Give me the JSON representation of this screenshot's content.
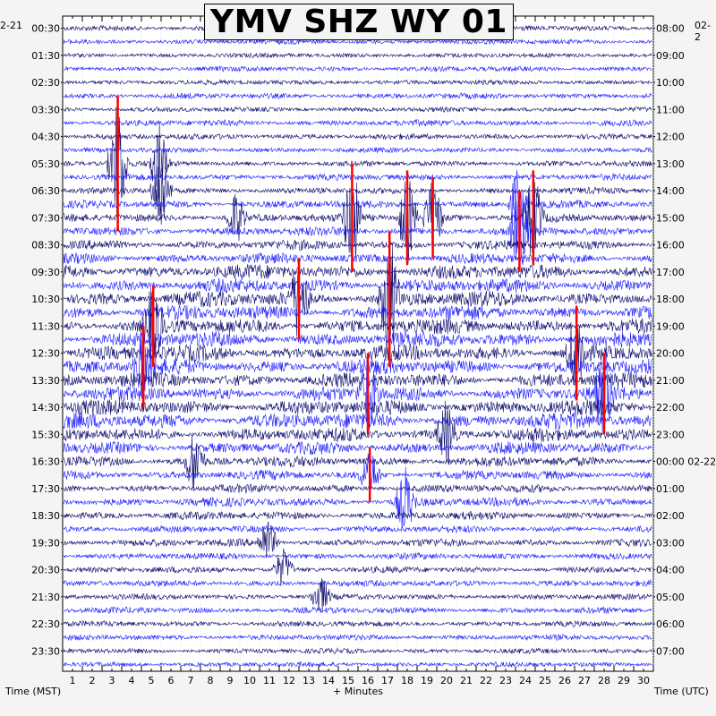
{
  "title": "YMV SHZ WY 01",
  "start_date_left": "2-21",
  "start_date_right": "02-2",
  "left_axis_title": "Time (MST)",
  "right_axis_title": "Time (UTC)",
  "x_axis_title": "+ Minutes",
  "colors": {
    "trace_dark": "#0a0a6e",
    "trace_blue": "#1a1aff",
    "clip": "#ff0000",
    "background": "#ffffff"
  },
  "chart_data": {
    "type": "line",
    "title": "YMV SHZ WY 01",
    "xlabel": "+ Minutes",
    "ylabel_left": "Time (MST)",
    "ylabel_right": "Time (UTC)",
    "xlim": [
      0,
      30
    ],
    "x_ticks": [
      1,
      2,
      3,
      4,
      5,
      6,
      7,
      8,
      9,
      10,
      11,
      12,
      13,
      14,
      15,
      16,
      17,
      18,
      19,
      20,
      21,
      22,
      23,
      24,
      25,
      26,
      27,
      28,
      29,
      30
    ],
    "rows_per_hour": 2,
    "row_count": 48,
    "left_tick_labels": [
      "00:30",
      "01:30",
      "02:30",
      "03:30",
      "04:30",
      "05:30",
      "06:30",
      "07:30",
      "08:30",
      "09:30",
      "10:30",
      "11:30",
      "12:30",
      "13:30",
      "14:30",
      "15:30",
      "16:30",
      "17:30",
      "18:30",
      "19:30",
      "20:30",
      "21:30",
      "22:30",
      "23:30"
    ],
    "right_tick_labels": [
      "08:00",
      "09:00",
      "10:00",
      "11:00",
      "12:00",
      "13:00",
      "14:00",
      "15:00",
      "16:00",
      "17:00",
      "18:00",
      "19:00",
      "20:00",
      "21:00",
      "22:00",
      "23:00",
      "00:00 02-22",
      "01:00",
      "02:00",
      "03:00",
      "04:00",
      "05:00",
      "06:00",
      "07:00"
    ],
    "row_activity": [
      0.25,
      0.2,
      0.18,
      0.22,
      0.2,
      0.25,
      0.2,
      0.3,
      0.25,
      0.22,
      0.25,
      0.3,
      0.3,
      0.4,
      0.45,
      0.5,
      0.55,
      0.6,
      0.9,
      0.85,
      1.0,
      0.9,
      0.95,
      1.0,
      1.0,
      0.95,
      0.95,
      0.9,
      0.95,
      1.0,
      0.85,
      0.75,
      0.6,
      0.5,
      0.45,
      0.5,
      0.45,
      0.35,
      0.4,
      0.3,
      0.3,
      0.3,
      0.25,
      0.3,
      0.25,
      0.25,
      0.22,
      0.2
    ],
    "events": [
      {
        "row": 10,
        "minute": 2.8,
        "amp": 5.0,
        "clip": true
      },
      {
        "row": 10,
        "minute": 4.9,
        "amp": 3.0,
        "clip": false
      },
      {
        "row": 12,
        "minute": 5.0,
        "amp": 3.5,
        "clip": false
      },
      {
        "row": 14,
        "minute": 8.8,
        "amp": 2.0,
        "clip": false
      },
      {
        "row": 14,
        "minute": 14.7,
        "amp": 4.0,
        "clip": true
      },
      {
        "row": 14,
        "minute": 17.5,
        "amp": 3.5,
        "clip": true
      },
      {
        "row": 14,
        "minute": 18.8,
        "amp": 3.0,
        "clip": true
      },
      {
        "row": 14,
        "minute": 23.9,
        "amp": 3.5,
        "clip": true
      },
      {
        "row": 13,
        "minute": 23.1,
        "amp": 2.5,
        "clip": false
      },
      {
        "row": 15,
        "minute": 23.2,
        "amp": 3.0,
        "clip": true
      },
      {
        "row": 20,
        "minute": 16.6,
        "amp": 5.0,
        "clip": true
      },
      {
        "row": 20,
        "minute": 12.0,
        "amp": 3.0,
        "clip": true
      },
      {
        "row": 22,
        "minute": 4.6,
        "amp": 3.0,
        "clip": true
      },
      {
        "row": 24,
        "minute": 26.1,
        "amp": 3.5,
        "clip": true
      },
      {
        "row": 25,
        "minute": 4.1,
        "amp": 3.0,
        "clip": true
      },
      {
        "row": 27,
        "minute": 15.5,
        "amp": 3.0,
        "clip": true
      },
      {
        "row": 27,
        "minute": 27.5,
        "amp": 3.0,
        "clip": true
      },
      {
        "row": 30,
        "minute": 19.5,
        "amp": 2.5,
        "clip": false
      },
      {
        "row": 32,
        "minute": 6.7,
        "amp": 2.5,
        "clip": false
      },
      {
        "row": 33,
        "minute": 15.6,
        "amp": 2.0,
        "clip": true
      },
      {
        "row": 35,
        "minute": 17.4,
        "amp": 2.5,
        "clip": false
      },
      {
        "row": 38,
        "minute": 10.4,
        "amp": 1.8,
        "clip": false
      },
      {
        "row": 40,
        "minute": 11.2,
        "amp": 1.5,
        "clip": false
      },
      {
        "row": 42,
        "minute": 13.1,
        "amp": 1.5,
        "clip": false
      }
    ]
  }
}
